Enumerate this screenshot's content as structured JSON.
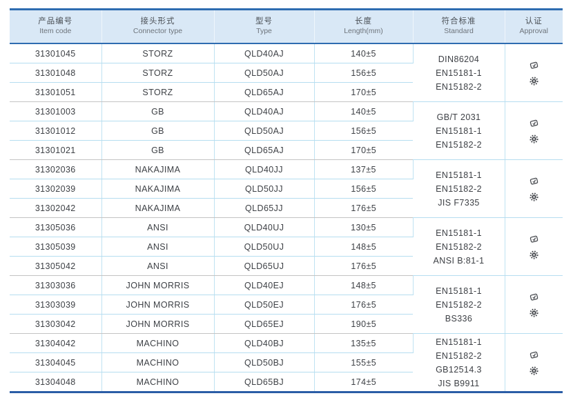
{
  "colors": {
    "header_bg": "#d9e8f6",
    "accent_blue": "#2e6cb0",
    "row_line_blue": "#b5ddf0",
    "group_line_gray": "#c3c3c3",
    "text": "#3d4045"
  },
  "header": {
    "columns": [
      {
        "zh": "产品编号",
        "en": "Item code"
      },
      {
        "zh": "接头形式",
        "en": "Connector type"
      },
      {
        "zh": "型号",
        "en": "Type"
      },
      {
        "zh": "长度",
        "en": "Length(mm)"
      },
      {
        "zh": "符合标准",
        "en": "Standard"
      },
      {
        "zh": "认证",
        "en": "Approval"
      }
    ]
  },
  "groups": [
    {
      "rows": [
        {
          "item_code": "31301045",
          "connector_type": "STORZ",
          "type": "QLD40AJ",
          "length": "140±5"
        },
        {
          "item_code": "31301048",
          "connector_type": "STORZ",
          "type": "QLD50AJ",
          "length": "156±5"
        },
        {
          "item_code": "31301051",
          "connector_type": "STORZ",
          "type": "QLD65AJ",
          "length": "170±5"
        }
      ],
      "standards": [
        "DIN86204",
        "EN15181-1",
        "EN15182-2"
      ],
      "approval_icons": [
        "certificate-stamp-icon",
        "gear-seal-icon"
      ]
    },
    {
      "rows": [
        {
          "item_code": "31301003",
          "connector_type": "GB",
          "type": "QLD40AJ",
          "length": "140±5"
        },
        {
          "item_code": "31301012",
          "connector_type": "GB",
          "type": "QLD50AJ",
          "length": "156±5"
        },
        {
          "item_code": "31301021",
          "connector_type": "GB",
          "type": "QLD65AJ",
          "length": "170±5"
        }
      ],
      "standards": [
        "GB/T 2031",
        "EN15181-1",
        "EN15182-2"
      ],
      "approval_icons": [
        "certificate-stamp-icon",
        "gear-seal-icon"
      ]
    },
    {
      "rows": [
        {
          "item_code": "31302036",
          "connector_type": "NAKAJIMA",
          "type": "QLD40JJ",
          "length": "137±5"
        },
        {
          "item_code": "31302039",
          "connector_type": "NAKAJIMA",
          "type": "QLD50JJ",
          "length": "156±5"
        },
        {
          "item_code": "31302042",
          "connector_type": "NAKAJIMA",
          "type": "QLD65JJ",
          "length": "176±5"
        }
      ],
      "standards": [
        "EN15181-1",
        "EN15182-2",
        "JIS F7335"
      ],
      "approval_icons": [
        "certificate-stamp-icon",
        "gear-seal-icon"
      ]
    },
    {
      "rows": [
        {
          "item_code": "31305036",
          "connector_type": "ANSI",
          "type": "QLD40UJ",
          "length": "130±5"
        },
        {
          "item_code": "31305039",
          "connector_type": "ANSI",
          "type": "QLD50UJ",
          "length": "148±5"
        },
        {
          "item_code": "31305042",
          "connector_type": "ANSI",
          "type": "QLD65UJ",
          "length": "176±5"
        }
      ],
      "standards": [
        "EN15181-1",
        "EN15182-2",
        "ANSI B:81-1"
      ],
      "approval_icons": [
        "certificate-stamp-icon",
        "gear-seal-icon"
      ]
    },
    {
      "rows": [
        {
          "item_code": "31303036",
          "connector_type": "JOHN MORRIS",
          "type": "QLD40EJ",
          "length": "148±5"
        },
        {
          "item_code": "31303039",
          "connector_type": "JOHN MORRIS",
          "type": "QLD50EJ",
          "length": "176±5"
        },
        {
          "item_code": "31303042",
          "connector_type": "JOHN MORRIS",
          "type": "QLD65EJ",
          "length": "190±5"
        }
      ],
      "standards": [
        "EN15181-1",
        "EN15182-2",
        "BS336"
      ],
      "approval_icons": [
        "certificate-stamp-icon",
        "gear-seal-icon"
      ]
    },
    {
      "rows": [
        {
          "item_code": "31304042",
          "connector_type": "MACHINO",
          "type": "QLD40BJ",
          "length": "135±5"
        },
        {
          "item_code": "31304045",
          "connector_type": "MACHINO",
          "type": "QLD50BJ",
          "length": "155±5"
        },
        {
          "item_code": "31304048",
          "connector_type": "MACHINO",
          "type": "QLD65BJ",
          "length": "174±5"
        }
      ],
      "standards": [
        "EN15181-1",
        "EN15182-2",
        "GB12514.3",
        "JIS B9911"
      ],
      "approval_icons": [
        "certificate-stamp-icon",
        "gear-seal-icon"
      ]
    }
  ]
}
